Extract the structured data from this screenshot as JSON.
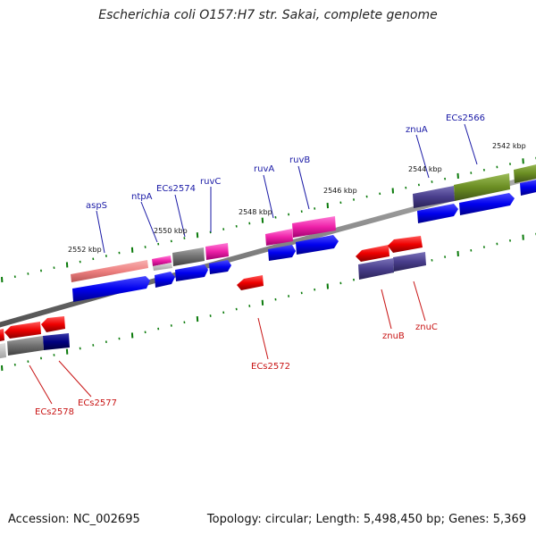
{
  "title": "Escherichia coli O157:H7 str. Sakai, complete genome",
  "footer": {
    "accession": "Accession: NC_002695",
    "summary": "Topology: circular; Length: 5,498,450 bp; Genes: 5,369"
  },
  "colors": {
    "backbone": "#808080",
    "forward_cds": "#0000ee",
    "reverse_cds": "#ee0000",
    "tick": "#0a7a0a",
    "label_forward": "#1a1aa6",
    "label_reverse": "#c81414"
  },
  "tick_labels": [
    {
      "id": "t2552",
      "text": "2552 kbp"
    },
    {
      "id": "t2550",
      "text": "2550 kbp"
    },
    {
      "id": "t2548",
      "text": "2548 kbp"
    },
    {
      "id": "t2546",
      "text": "2546 kbp"
    },
    {
      "id": "t2544",
      "text": "2544 kbp"
    },
    {
      "id": "t2542",
      "text": "2542 kbp"
    }
  ],
  "gene_labels": [
    {
      "id": "aspS",
      "text": "aspS",
      "strand": "forward"
    },
    {
      "id": "ntpA",
      "text": "ntpA",
      "strand": "forward"
    },
    {
      "id": "ECs2574",
      "text": "ECs2574",
      "strand": "forward"
    },
    {
      "id": "ruvC",
      "text": "ruvC",
      "strand": "forward"
    },
    {
      "id": "ruvA",
      "text": "ruvA",
      "strand": "forward"
    },
    {
      "id": "ruvB",
      "text": "ruvB",
      "strand": "forward"
    },
    {
      "id": "znuA",
      "text": "znuA",
      "strand": "forward"
    },
    {
      "id": "ECs2566",
      "text": "ECs2566",
      "strand": "forward"
    },
    {
      "id": "ECs2572",
      "text": "ECs2572",
      "strand": "reverse"
    },
    {
      "id": "znuB",
      "text": "znuB",
      "strand": "reverse"
    },
    {
      "id": "znuC",
      "text": "znuC",
      "strand": "reverse"
    },
    {
      "id": "ECs2578",
      "text": "ECs2578",
      "strand": "reverse"
    },
    {
      "id": "ECs2577",
      "text": "ECs2577",
      "strand": "reverse"
    }
  ]
}
